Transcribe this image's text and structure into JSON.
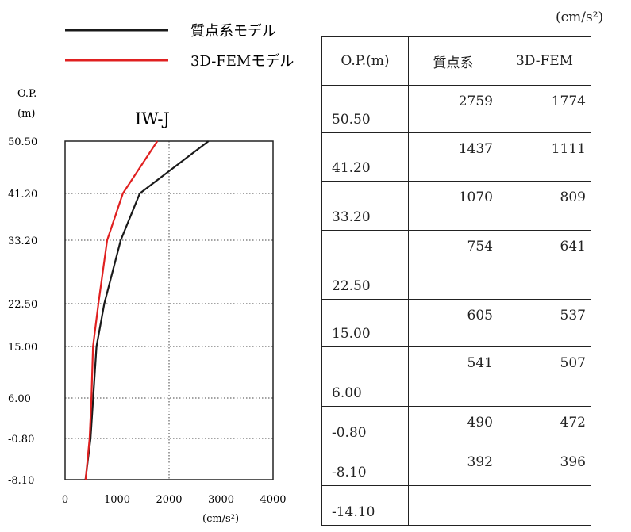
{
  "unit_top": "(cm/s²)",
  "chart_data": {
    "type": "line",
    "title": "IW-J",
    "y_axis_label_line1": "O.P.",
    "y_axis_label_line2": "(m)",
    "x_unit": "(cm/s²)",
    "xlim": [
      0,
      4000
    ],
    "x_ticks": [
      "0",
      "1000",
      "2000",
      "3000",
      "4000"
    ],
    "y_levels": [
      50.5,
      41.2,
      33.2,
      22.5,
      15.0,
      6.0,
      -0.8,
      -8.1
    ],
    "y_tick_labels": [
      "50.50",
      "41.20",
      "33.20",
      "22.50",
      "15.00",
      "6.00",
      "-0.80",
      "-8.10"
    ],
    "grid": true,
    "series": [
      {
        "name": "質点系モデル",
        "color": "#1a1a1a",
        "points": [
          [
            2759,
            50.5
          ],
          [
            1437,
            41.2
          ],
          [
            1070,
            33.2
          ],
          [
            754,
            22.5
          ],
          [
            605,
            15.0
          ],
          [
            541,
            6.0
          ],
          [
            490,
            -0.8
          ],
          [
            392,
            -8.1
          ]
        ]
      },
      {
        "name": "3D-FEMモデル",
        "color": "#e02020",
        "points": [
          [
            1774,
            50.5
          ],
          [
            1111,
            41.2
          ],
          [
            809,
            33.2
          ],
          [
            641,
            22.5
          ],
          [
            537,
            15.0
          ],
          [
            507,
            6.0
          ],
          [
            472,
            -0.8
          ],
          [
            396,
            -8.1
          ]
        ]
      }
    ]
  },
  "table": {
    "headers": [
      "O.P.(m)",
      "質点系",
      "3D-FEM"
    ],
    "rows": [
      {
        "op": "50.50",
        "mass": "2759",
        "fem": "1774"
      },
      {
        "op": "41.20",
        "mass": "1437",
        "fem": "1111"
      },
      {
        "op": "33.20",
        "mass": "1070",
        "fem": "809"
      },
      {
        "op": "22.50",
        "mass": "754",
        "fem": "641"
      },
      {
        "op": "15.00",
        "mass": "605",
        "fem": "537"
      },
      {
        "op": "6.00",
        "mass": "541",
        "fem": "507"
      },
      {
        "op": "-0.80",
        "mass": "490",
        "fem": "472"
      },
      {
        "op": "-8.10",
        "mass": "392",
        "fem": "396"
      },
      {
        "op": "-14.10",
        "mass": "",
        "fem": ""
      }
    ]
  }
}
